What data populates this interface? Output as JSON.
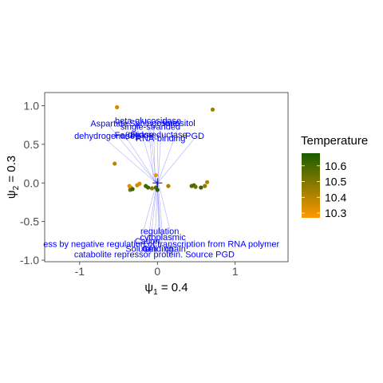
{
  "chart_data": {
    "type": "scatter",
    "title": "",
    "xlabel_symbol": "ψ",
    "xlabel_sub": "1",
    "xlabel_rest": " = 0.4",
    "ylabel_symbol": "ψ",
    "ylabel_sub": "2",
    "ylabel_rest": " = 0.3",
    "xlim": [
      -1.45,
      1.68
    ],
    "ylim": [
      -1.02,
      1.17
    ],
    "xticks": [
      -1,
      0,
      1
    ],
    "yticks": [
      -1.0,
      -0.5,
      0.0,
      0.5,
      1.0
    ],
    "ytick_labels": [
      "-1.0",
      "-0.5",
      "0.0",
      "0.5",
      "1.0"
    ],
    "xtick_labels": [
      "-1",
      "0",
      "1"
    ],
    "grid": false,
    "legend": {
      "title": "Temperature",
      "position": "right",
      "min": 10.27,
      "max": 10.68,
      "ticks": [
        10.6,
        10.5,
        10.4,
        10.3
      ],
      "tick_labels": [
        "10.6",
        "10.5",
        "10.4",
        "10.3"
      ],
      "color_low": "#FF9900",
      "color_high": "#1A5C00"
    },
    "points": [
      {
        "x": -0.52,
        "y": 0.98,
        "t": 10.35
      },
      {
        "x": 0.71,
        "y": 0.95,
        "t": 10.45
      },
      {
        "x": -0.55,
        "y": 0.25,
        "t": 10.4
      },
      {
        "x": -0.02,
        "y": 0.1,
        "t": 10.29
      },
      {
        "x": -0.36,
        "y": -0.04,
        "t": 10.33
      },
      {
        "x": -0.34,
        "y": -0.06,
        "t": 10.31
      },
      {
        "x": -0.35,
        "y": -0.09,
        "t": 10.52
      },
      {
        "x": -0.32,
        "y": -0.08,
        "t": 10.62
      },
      {
        "x": -0.26,
        "y": -0.03,
        "t": 10.36
      },
      {
        "x": -0.23,
        "y": -0.01,
        "t": 10.34
      },
      {
        "x": -0.15,
        "y": -0.04,
        "t": 10.6
      },
      {
        "x": -0.12,
        "y": -0.06,
        "t": 10.62
      },
      {
        "x": -0.07,
        "y": -0.07,
        "t": 10.48
      },
      {
        "x": -0.02,
        "y": -0.06,
        "t": 10.58
      },
      {
        "x": 0.0,
        "y": -0.09,
        "t": 10.66
      },
      {
        "x": 0.14,
        "y": -0.04,
        "t": 10.42
      },
      {
        "x": 0.44,
        "y": -0.04,
        "t": 10.56
      },
      {
        "x": 0.47,
        "y": -0.03,
        "t": 10.6
      },
      {
        "x": 0.49,
        "y": -0.05,
        "t": 10.53
      },
      {
        "x": 0.56,
        "y": -0.06,
        "t": 10.63
      },
      {
        "x": 0.61,
        "y": -0.04,
        "t": 10.48
      },
      {
        "x": 0.64,
        "y": 0.01,
        "t": 10.41
      }
    ],
    "annotations": [
      {
        "text": "beta-glucosidase",
        "x": -0.12,
        "y": 0.81,
        "tx": -0.05,
        "ty": 0.04
      },
      {
        "text": "Aspartate",
        "x": -0.62,
        "y": 0.77,
        "tx": -0.04,
        "ty": 0.03
      },
      {
        "text": "Sphingosine",
        "x": -0.05,
        "y": 0.78,
        "tx": -0.03,
        "ty": 0.03
      },
      {
        "text": "ionositol",
        "x": 0.28,
        "y": 0.78,
        "tx": 0.02,
        "ty": 0.04
      },
      {
        "text": "single-stranded",
        "x": -0.09,
        "y": 0.73,
        "tx": -0.02,
        "ty": 0.03
      },
      {
        "text": "Fe(III)",
        "x": -0.4,
        "y": 0.62,
        "tx": -0.03,
        "ty": 0.02
      },
      {
        "text": "dehydrogenase",
        "x": -0.68,
        "y": 0.61,
        "tx": -0.04,
        "ty": 0.02
      },
      {
        "text": "ligase",
        "x": -0.19,
        "y": 0.63,
        "tx": -0.02,
        "ty": 0.02
      },
      {
        "text": "oxidoreductase",
        "x": 0.0,
        "y": 0.63,
        "tx": 0.01,
        "ty": 0.03
      },
      {
        "text": "PGD",
        "x": 0.48,
        "y": 0.61,
        "tx": 0.03,
        "ty": 0.03
      },
      {
        "text": "RNA-binding",
        "x": 0.04,
        "y": 0.58,
        "tx": 0.01,
        "ty": 0.02
      },
      {
        "text": "regulation",
        "x": 0.03,
        "y": -0.62,
        "tx": 0.0,
        "ty": -0.02
      },
      {
        "text": "cytoplasmic",
        "x": 0.07,
        "y": -0.7,
        "tx": 0.01,
        "ty": -0.02
      },
      {
        "text": "Cation",
        "x": -0.13,
        "y": -0.75,
        "tx": -0.01,
        "ty": -0.02
      },
      {
        "text": "ess by negative regulation of transcription from RNA polymer",
        "x": 0.05,
        "y": -0.79,
        "tx": 0.0,
        "ty": -0.03
      },
      {
        "text": "Solute",
        "x": -0.25,
        "y": -0.85,
        "tx": -0.02,
        "ty": -0.03
      },
      {
        "text": "Cell",
        "x": -0.1,
        "y": -0.85,
        "tx": -0.01,
        "ty": -0.03
      },
      {
        "text": "binding",
        "x": 0.02,
        "y": -0.85,
        "tx": 0.0,
        "ty": -0.03
      },
      {
        "text": "chain",
        "x": 0.23,
        "y": -0.85,
        "tx": 0.02,
        "ty": -0.03
      },
      {
        "text": "catabolite repressor protein. Source PGD",
        "x": -0.04,
        "y": -0.92,
        "tx": 0.0,
        "ty": -0.04
      }
    ]
  }
}
